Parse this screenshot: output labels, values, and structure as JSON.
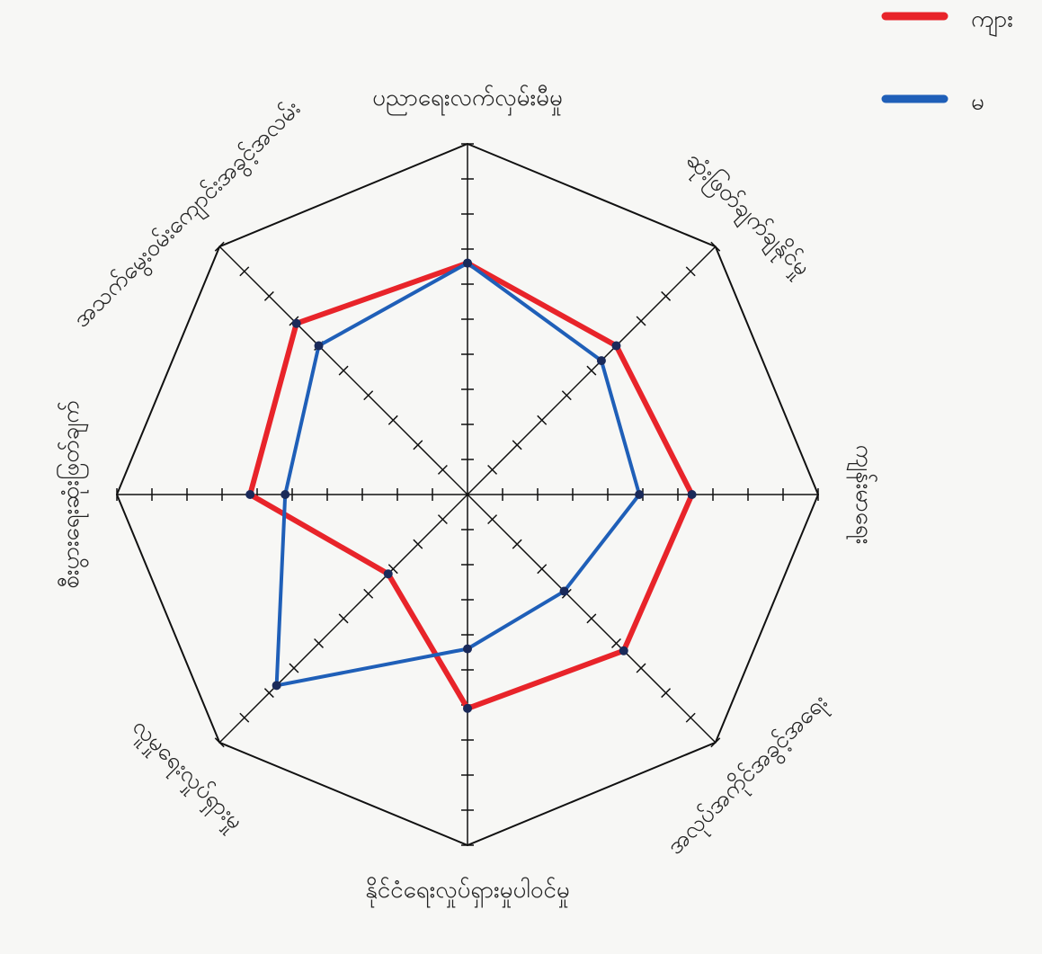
{
  "chart_data": {
    "type": "radar",
    "axes": [
      "ပညာရေးလက်လှမ်းမီမှု",
      "ဆုံးဖြတ်ချက်ချနိုင်မှု",
      "ကျန်းမာရေး",
      "အလုပ်အကိုင်အခွင့်အရေး",
      "နိုင်ငံရေးလှုပ်ရှားမှုပါဝင်မှု",
      "လူမှုရေးလှုပ်ရှားမှု",
      "စီးပွားရေးဆုံးဖြတ်ချက်",
      "အသက်မွေးဝမ်းကျောင်းအခွင့်အလမ်း"
    ],
    "series": [
      {
        "name": "ကျား",
        "color": "#e8242a",
        "values": [
          6.6,
          6.0,
          6.4,
          6.3,
          6.1,
          3.2,
          6.2,
          6.9
        ]
      },
      {
        "name": "မ",
        "color": "#1f5fb8",
        "values": [
          6.6,
          5.4,
          4.9,
          3.9,
          4.4,
          7.7,
          5.2,
          6.0
        ]
      }
    ],
    "rlim": [
      0,
      10
    ],
    "rticks": [
      1,
      2,
      3,
      4,
      5,
      6,
      7,
      8,
      9,
      10
    ],
    "legend": "top-right"
  }
}
